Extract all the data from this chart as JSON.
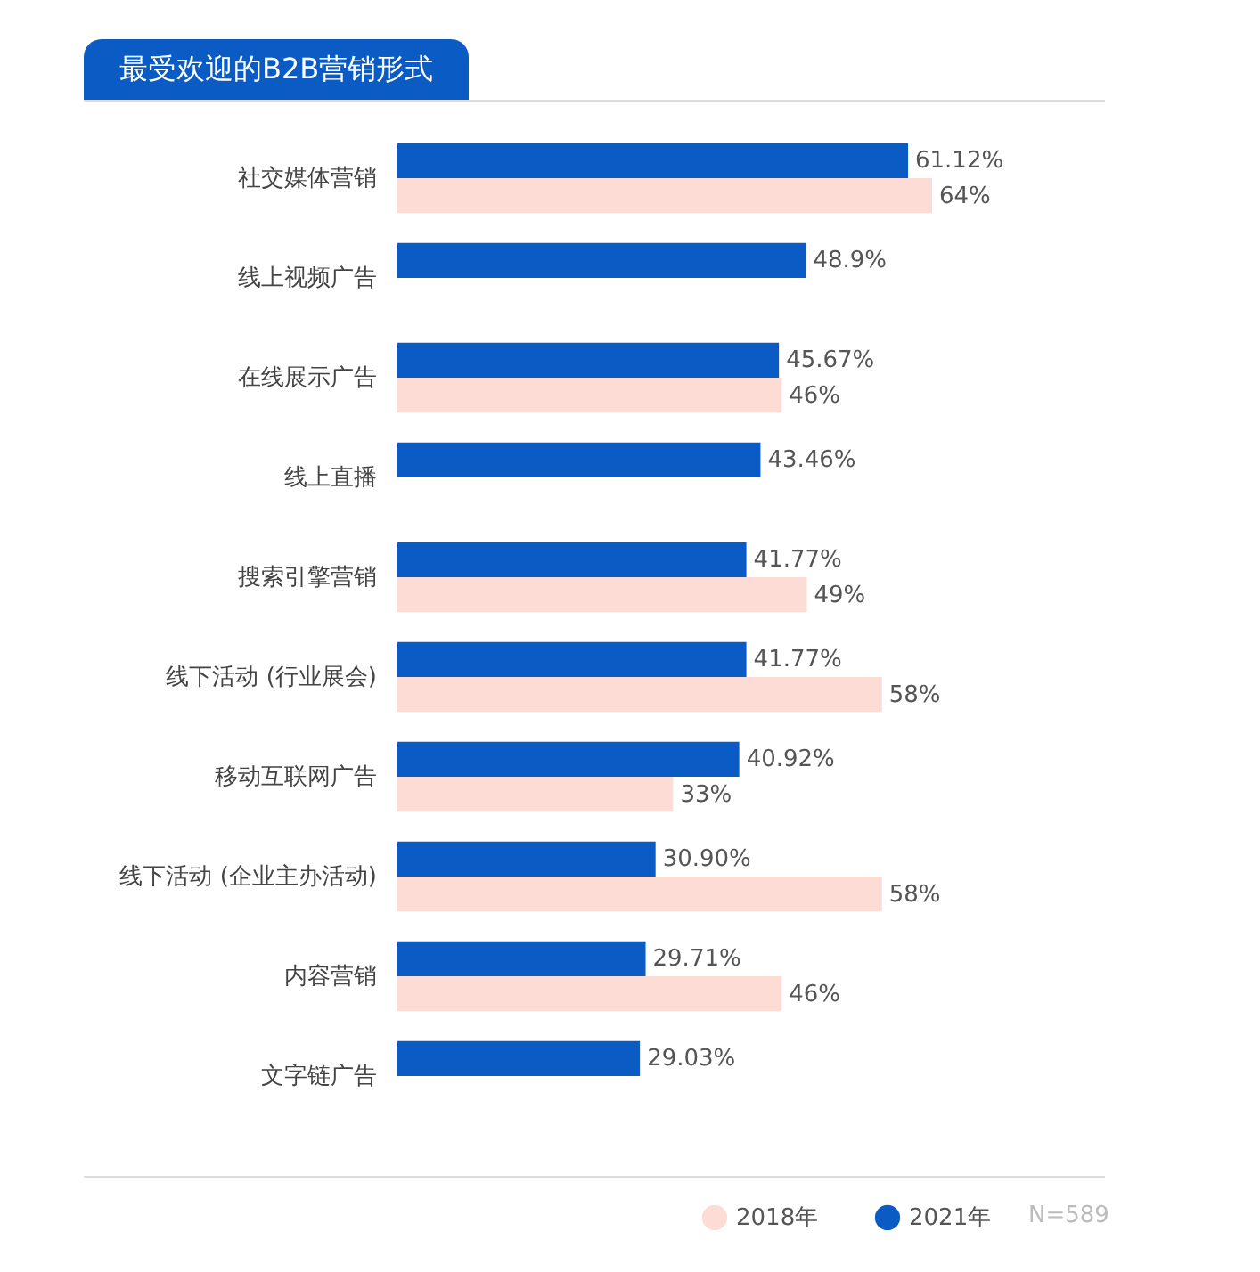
{
  "chart_data": {
    "type": "bar",
    "orientation": "horizontal",
    "title": "最受欢迎的B2B营销形式",
    "categories": [
      "社交媒体营销",
      "线上视频广告",
      "在线展示广告",
      "线上直播",
      "搜索引擎营销",
      "线下活动 (行业展会)",
      "移动互联网广告",
      "线下活动 (企业主办活动)",
      "内容营销",
      "文字链广告"
    ],
    "series": [
      {
        "name": "2018年",
        "color": "#fddcd6",
        "values": [
          64,
          null,
          46,
          null,
          49,
          58,
          33,
          58,
          46,
          null
        ],
        "value_labels": [
          "64%",
          null,
          "46%",
          null,
          "49%",
          "58%",
          "33%",
          "58%",
          "46%",
          null
        ]
      },
      {
        "name": "2021年",
        "color": "#0a5cc4",
        "values": [
          61.12,
          48.9,
          45.67,
          43.46,
          41.77,
          41.77,
          40.92,
          30.9,
          29.71,
          29.03
        ],
        "value_labels": [
          "61.12%",
          "48.9%",
          "45.67%",
          "43.46%",
          "41.77%",
          "41.77%",
          "40.92%",
          "30.90%",
          "29.71%",
          "29.03%"
        ]
      }
    ],
    "legend": "bottom right",
    "annotations": [
      "N=589"
    ]
  }
}
